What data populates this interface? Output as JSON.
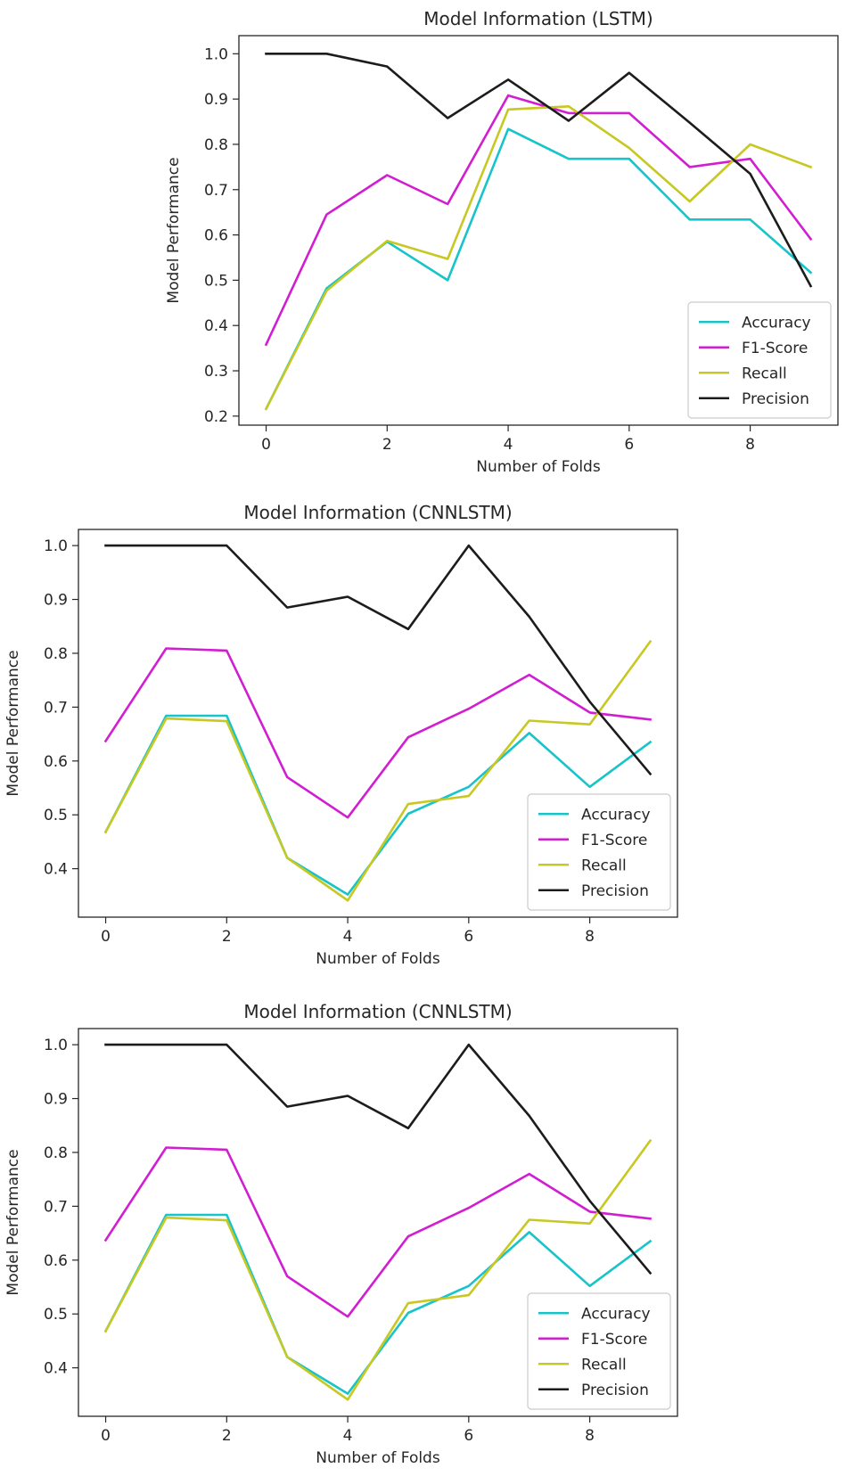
{
  "chart_data": [
    {
      "type": "line",
      "title": "Model Information (LSTM)",
      "xlabel": "Number of Folds",
      "ylabel": "Model Performance",
      "x": [
        0,
        1,
        2,
        3,
        4,
        5,
        6,
        7,
        8,
        9
      ],
      "xlim": [
        -0.45,
        9.45
      ],
      "ylim": [
        0.18,
        1.04
      ],
      "xticks": [
        0,
        2,
        4,
        6,
        8
      ],
      "yticks": [
        0.2,
        0.3,
        0.4,
        0.5,
        0.6,
        0.7,
        0.8,
        0.9,
        1.0
      ],
      "legend_position": "lower right",
      "series": [
        {
          "name": "Accuracy",
          "color": "#17c4c9",
          "values": [
            0.216,
            0.482,
            0.585,
            0.5,
            0.834,
            0.768,
            0.768,
            0.634,
            0.634,
            0.517
          ]
        },
        {
          "name": "F1-Score",
          "color": "#d11ed1",
          "values": [
            0.358,
            0.645,
            0.732,
            0.668,
            0.908,
            0.869,
            0.869,
            0.75,
            0.768,
            0.591
          ]
        },
        {
          "name": "Recall",
          "color": "#c8c823",
          "values": [
            0.216,
            0.477,
            0.587,
            0.547,
            0.877,
            0.884,
            0.792,
            0.674,
            0.8,
            0.75
          ]
        },
        {
          "name": "Precision",
          "color": "#1c1c1c",
          "values": [
            1.0,
            1.0,
            0.972,
            0.858,
            0.943,
            0.852,
            0.958,
            0.848,
            0.735,
            0.487
          ]
        }
      ]
    },
    {
      "type": "line",
      "title": "Model Information (CNNLSTM)",
      "xlabel": "Number of Folds",
      "ylabel": "Model Performance",
      "x": [
        0,
        1,
        2,
        3,
        4,
        5,
        6,
        7,
        8,
        9
      ],
      "xlim": [
        -0.45,
        9.45
      ],
      "ylim": [
        0.31,
        1.03
      ],
      "xticks": [
        0,
        2,
        4,
        6,
        8
      ],
      "yticks": [
        0.4,
        0.5,
        0.6,
        0.7,
        0.8,
        0.9,
        1.0
      ],
      "legend_position": "lower right",
      "series": [
        {
          "name": "Accuracy",
          "color": "#17c4c9",
          "values": [
            0.468,
            0.684,
            0.684,
            0.42,
            0.352,
            0.502,
            0.552,
            0.652,
            0.552,
            0.635
          ]
        },
        {
          "name": "F1-Score",
          "color": "#d11ed1",
          "values": [
            0.637,
            0.809,
            0.805,
            0.57,
            0.495,
            0.644,
            0.697,
            0.76,
            0.69,
            0.677
          ]
        },
        {
          "name": "Recall",
          "color": "#c8c823",
          "values": [
            0.468,
            0.679,
            0.674,
            0.42,
            0.341,
            0.52,
            0.535,
            0.675,
            0.668,
            0.822
          ]
        },
        {
          "name": "Precision",
          "color": "#1c1c1c",
          "values": [
            1.0,
            1.0,
            1.0,
            0.885,
            0.905,
            0.845,
            1.0,
            0.868,
            0.71,
            0.576
          ]
        }
      ]
    },
    {
      "type": "line",
      "title": "Model Information (CNNLSTM)",
      "xlabel": "Number of Folds",
      "ylabel": "Model Performance",
      "x": [
        0,
        1,
        2,
        3,
        4,
        5,
        6,
        7,
        8,
        9
      ],
      "xlim": [
        -0.45,
        9.45
      ],
      "ylim": [
        0.31,
        1.03
      ],
      "xticks": [
        0,
        2,
        4,
        6,
        8
      ],
      "yticks": [
        0.4,
        0.5,
        0.6,
        0.7,
        0.8,
        0.9,
        1.0
      ],
      "legend_position": "lower right",
      "series": [
        {
          "name": "Accuracy",
          "color": "#17c4c9",
          "values": [
            0.468,
            0.684,
            0.684,
            0.42,
            0.352,
            0.502,
            0.552,
            0.652,
            0.552,
            0.635
          ]
        },
        {
          "name": "F1-Score",
          "color": "#d11ed1",
          "values": [
            0.637,
            0.809,
            0.805,
            0.57,
            0.495,
            0.644,
            0.697,
            0.76,
            0.69,
            0.677
          ]
        },
        {
          "name": "Recall",
          "color": "#c8c823",
          "values": [
            0.468,
            0.679,
            0.674,
            0.42,
            0.341,
            0.52,
            0.535,
            0.675,
            0.668,
            0.822
          ]
        },
        {
          "name": "Precision",
          "color": "#1c1c1c",
          "values": [
            1.0,
            1.0,
            1.0,
            0.885,
            0.905,
            0.845,
            1.0,
            0.868,
            0.71,
            0.576
          ]
        }
      ]
    }
  ]
}
